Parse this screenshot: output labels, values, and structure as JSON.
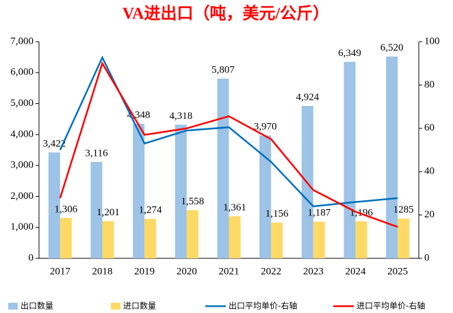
{
  "chart_data": {
    "type": "combo",
    "title": "VA进出口（吨，美元/公斤）",
    "categories": [
      "2017",
      "2018",
      "2019",
      "2020",
      "2021",
      "2022",
      "2023",
      "2024",
      "2025"
    ],
    "series": [
      {
        "name": "出口数量",
        "type": "bar",
        "color": "#9dc3e6",
        "values": [
          3422,
          3116,
          4348,
          4318,
          5807,
          3970,
          4924,
          6349,
          6520
        ],
        "value_labels": [
          "3,422",
          "3,116",
          "4,348",
          "4,318",
          "5,807",
          "3,970",
          "4,924",
          "6,349",
          "6,520"
        ]
      },
      {
        "name": "进口数量",
        "type": "bar",
        "color": "#ffd966",
        "values": [
          1306,
          1201,
          1274,
          1558,
          1361,
          1156,
          1187,
          1196,
          1285
        ],
        "value_labels": [
          "1,306",
          "1,201",
          "1,274",
          "1,558",
          "1,361",
          "1,156",
          "1,187",
          "1,196",
          "1285"
        ]
      },
      {
        "name": "出口平均单价-右轴",
        "type": "line",
        "axis": "y2",
        "color": "#0070c0",
        "values": [
          50,
          92.7,
          53,
          59,
          60.5,
          44.5,
          24,
          26,
          27.8
        ]
      },
      {
        "name": "进口平均单价-右轴",
        "type": "line",
        "axis": "y2",
        "color": "#ff0000",
        "values": [
          27.8,
          90,
          57,
          60,
          65.6,
          55,
          31.5,
          21.5,
          14.5
        ]
      }
    ],
    "ylim": [
      0,
      7000
    ],
    "yticks": [
      0,
      {
        "value": 1000,
        "label": "1,000"
      },
      {
        "value": 2000,
        "label": "2,000"
      },
      {
        "value": 3000,
        "label": "3,000"
      },
      {
        "value": 4000,
        "label": "4,000"
      },
      {
        "value": 5000,
        "label": "5,000"
      },
      {
        "value": 6000,
        "label": "6,000"
      },
      {
        "value": 7000,
        "label": "7,000"
      }
    ],
    "y2lim": [
      0,
      100
    ],
    "y2ticks": [
      0,
      20,
      40,
      60,
      80,
      100
    ],
    "grid": false,
    "legend": "bottom"
  }
}
